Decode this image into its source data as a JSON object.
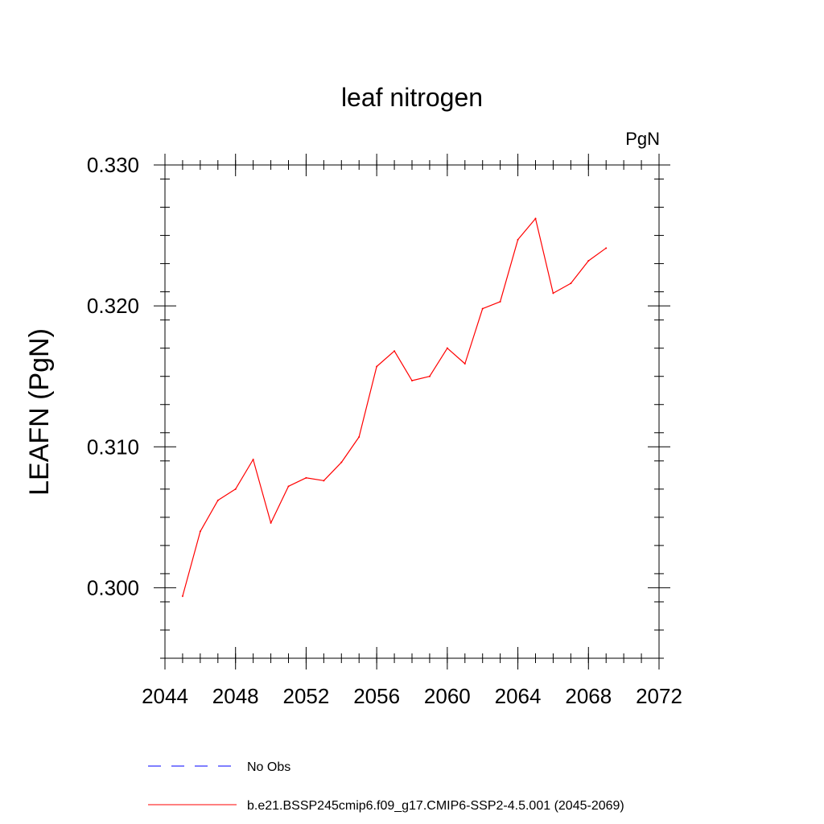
{
  "chart_data": {
    "type": "line",
    "title": "leaf nitrogen",
    "units_label": "PgN",
    "xlabel": "",
    "ylabel": "LEAFN  (PgN)",
    "xlim": [
      2044,
      2072
    ],
    "ylim": [
      0.295,
      0.331
    ],
    "x_ticks": [
      2044,
      2048,
      2052,
      2056,
      2060,
      2064,
      2068,
      2072
    ],
    "x_tick_labels": [
      "2044",
      "2048",
      "2052",
      "2056",
      "2060",
      "2064",
      "2068",
      "2072"
    ],
    "y_ticks": [
      0.3,
      0.31,
      0.32,
      0.33
    ],
    "y_tick_labels": [
      "0.300",
      "0.310",
      "0.320",
      "0.330"
    ],
    "y_minor_step": 0.002,
    "x_minor_step": 1,
    "grid": false,
    "series": [
      {
        "name": "b.e21.BSSP245cmip6.f09_g17.CMIP6-SSP2-4.5.001 (2045-2069)",
        "color": "#ff0000",
        "style": "solid",
        "x": [
          2045,
          2046,
          2047,
          2048,
          2049,
          2050,
          2051,
          2052,
          2053,
          2054,
          2055,
          2056,
          2057,
          2058,
          2059,
          2060,
          2061,
          2062,
          2063,
          2064,
          2065,
          2066,
          2067,
          2068,
          2069
        ],
        "values": [
          0.2994,
          0.304,
          0.3062,
          0.307,
          0.3091,
          0.3046,
          0.3072,
          0.3078,
          0.3076,
          0.3089,
          0.3107,
          0.3157,
          0.3168,
          0.3147,
          0.315,
          0.317,
          0.3159,
          0.3198,
          0.3203,
          0.3247,
          0.3262,
          0.3209,
          0.3216,
          0.3232,
          0.3241
        ]
      }
    ],
    "legend": [
      {
        "label": "No Obs",
        "color": "#0000ff",
        "style": "dashed"
      },
      {
        "label": "b.e21.BSSP245cmip6.f09_g17.CMIP6-SSP2-4.5.001 (2045-2069)",
        "color": "#ff0000",
        "style": "solid"
      }
    ],
    "legend_position": "bottom"
  }
}
